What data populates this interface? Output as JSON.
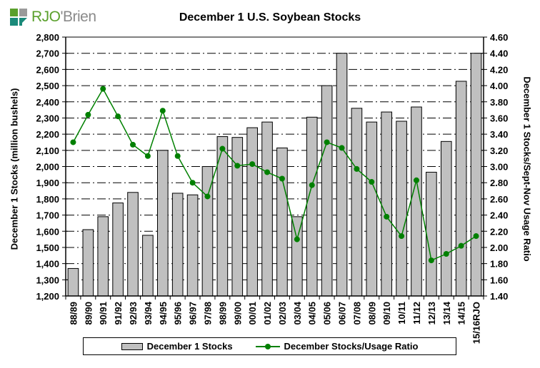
{
  "logo": {
    "brand_prefix": "RJO",
    "brand_suffix": "'Brien"
  },
  "chart_data": {
    "type": "bar",
    "title": "December 1 U.S. Soybean Stocks",
    "xlabel": "",
    "ylabel": "December 1 Stocks (million bushels)",
    "y2label": "December 1 Stocks/Sept-Nov Usage Ratio",
    "ylim": [
      1200,
      2800
    ],
    "y_ticks": [
      "1,200",
      "1,300",
      "1,400",
      "1,500",
      "1,600",
      "1,700",
      "1,800",
      "1,900",
      "2,000",
      "2,100",
      "2,200",
      "2,300",
      "2,400",
      "2,500",
      "2,600",
      "2,700",
      "2,800"
    ],
    "y2lim": [
      1.4,
      4.6
    ],
    "y2_ticks": [
      "1.40",
      "1.60",
      "1.80",
      "2.00",
      "2.20",
      "2.40",
      "2.60",
      "2.80",
      "3.00",
      "3.20",
      "3.40",
      "3.60",
      "3.80",
      "4.00",
      "4.20",
      "4.40",
      "4.60"
    ],
    "grid": true,
    "legend_position": "bottom",
    "categories": [
      "88/89",
      "89/90",
      "90/91",
      "91/92",
      "92/93",
      "93/94",
      "94/95",
      "95/96",
      "96/97",
      "97/98",
      "98/99",
      "99/00",
      "00/01",
      "01/02",
      "02/03",
      "03/04",
      "04/05",
      "05/06",
      "06/07",
      "07/08",
      "08/09",
      "09/10",
      "10/11",
      "11/12",
      "12/13",
      "13/14",
      "14/15",
      "15/16RJO"
    ],
    "series": [
      {
        "name": "December 1 Stocks",
        "type": "bar",
        "axis": "left",
        "color": "#c0c0c0",
        "values": [
          1370,
          1610,
          1690,
          1775,
          1840,
          1575,
          2100,
          1835,
          1825,
          2000,
          2185,
          2180,
          2240,
          2275,
          2115,
          1690,
          2305,
          2500,
          2700,
          2360,
          2275,
          2337,
          2280,
          2368,
          1965,
          2155,
          2527,
          2700
        ]
      },
      {
        "name": "December Stocks/Usage Ratio",
        "type": "line",
        "axis": "right",
        "color": "#008000",
        "values": [
          3.3,
          3.64,
          3.96,
          3.62,
          3.27,
          3.13,
          3.69,
          3.13,
          2.8,
          2.63,
          3.22,
          3.01,
          3.03,
          2.93,
          2.85,
          2.1,
          2.77,
          3.3,
          3.23,
          2.97,
          2.81,
          2.38,
          2.14,
          2.83,
          1.84,
          1.92,
          2.02,
          2.14
        ]
      }
    ]
  }
}
